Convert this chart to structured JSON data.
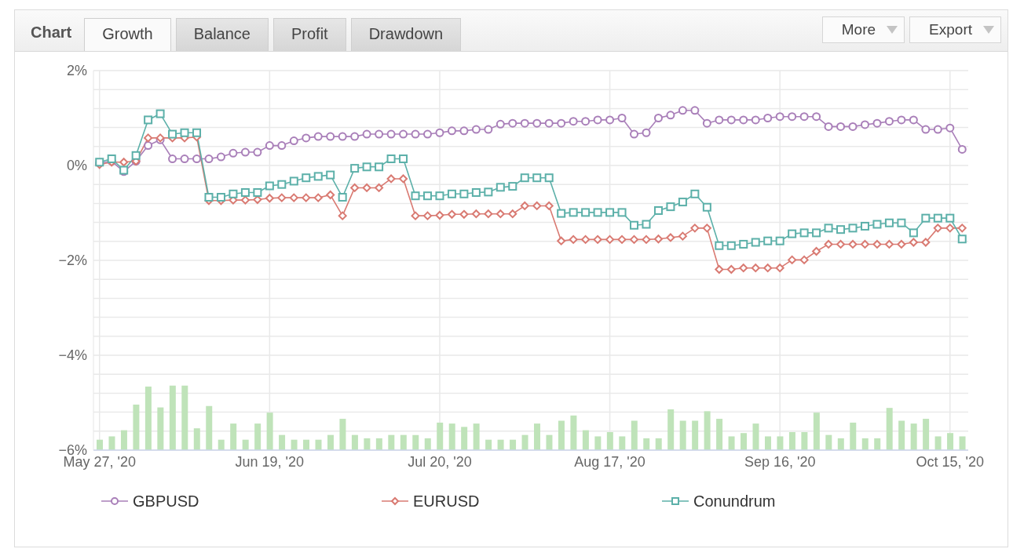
{
  "chart_data": {
    "type": "line",
    "title": "Chart",
    "annotations": [
      "Growth",
      "Balance",
      "Profit",
      "Drawdown",
      "More",
      "Export"
    ],
    "categories": [
      "May 27, '20",
      null,
      null,
      null,
      null,
      null,
      null,
      null,
      null,
      null,
      null,
      null,
      null,
      null,
      "Jun 19, '20",
      null,
      null,
      null,
      null,
      null,
      null,
      null,
      null,
      null,
      null,
      null,
      null,
      null,
      "Jul 20, '20",
      null,
      null,
      null,
      null,
      null,
      null,
      null,
      null,
      null,
      null,
      null,
      null,
      null,
      "Aug 17, '20",
      null,
      null,
      null,
      null,
      null,
      null,
      null,
      null,
      null,
      null,
      null,
      null,
      null,
      "Sep 16, '20",
      null,
      null,
      null,
      null,
      null,
      null,
      null,
      null,
      null,
      null,
      null,
      null,
      null,
      "Oct 15, '20",
      null
    ],
    "ylim": [
      -6,
      2
    ],
    "yticks": [
      {
        "value": 2,
        "label": "2%"
      },
      {
        "value": 1.6,
        "label": null
      },
      {
        "value": 1.2,
        "label": null
      },
      {
        "value": 0.8,
        "label": null
      },
      {
        "value": 0.4,
        "label": null
      },
      {
        "value": 0,
        "label": "0%"
      },
      {
        "value": -0.4,
        "label": null
      },
      {
        "value": -0.8,
        "label": null
      },
      {
        "value": -1.2,
        "label": null
      },
      {
        "value": -1.6,
        "label": null
      },
      {
        "value": -2,
        "label": "−2%"
      },
      {
        "value": -2.4,
        "label": null
      },
      {
        "value": -2.8,
        "label": null
      },
      {
        "value": -3.2,
        "label": null
      },
      {
        "value": -3.6,
        "label": null
      },
      {
        "value": -4,
        "label": "−4%"
      },
      {
        "value": -4.4,
        "label": null
      },
      {
        "value": -4.8,
        "label": null
      },
      {
        "value": -5.2,
        "label": null
      },
      {
        "value": -5.6,
        "label": null
      },
      {
        "value": -6,
        "label": "−6%"
      }
    ],
    "grid": true,
    "legend": "bottom",
    "series": [
      {
        "type": "bar",
        "color": "#bfe3b9",
        "values": [
          0.22,
          0.29,
          0.42,
          0.96,
          1.34,
          0.9,
          1.36,
          1.36,
          0.46,
          0.93,
          0.22,
          0.56,
          0.22,
          0.56,
          0.79,
          0.32,
          0.22,
          0.22,
          0.22,
          0.32,
          0.66,
          0.32,
          0.25,
          0.25,
          0.32,
          0.32,
          0.32,
          0.25,
          0.58,
          0.56,
          0.49,
          0.56,
          0.22,
          0.22,
          0.22,
          0.32,
          0.56,
          0.32,
          0.62,
          0.73,
          0.42,
          0.29,
          0.38,
          0.29,
          0.62,
          0.25,
          0.25,
          0.86,
          0.62,
          0.62,
          0.82,
          0.66,
          0.29,
          0.36,
          0.56,
          0.29,
          0.29,
          0.38,
          0.38,
          0.79,
          0.32,
          0.25,
          0.58,
          0.25,
          0.25,
          0.89,
          0.62,
          0.56,
          0.66,
          0.29,
          0.36,
          0.29
        ],
        "base": [
          -6,
          -6,
          -6,
          -6,
          -6,
          -6,
          -6,
          -6,
          -6,
          -6,
          -6,
          -6,
          -6,
          -6,
          -6,
          -6,
          -6,
          -6,
          -6,
          -6,
          -6,
          -6,
          -6,
          -6,
          -6,
          -6,
          -6,
          -6,
          -6,
          -6,
          -6,
          -6,
          -6,
          -6,
          -6,
          -6,
          -6,
          -6,
          -6,
          -6,
          -6,
          -6,
          -6,
          -6,
          -6,
          -6,
          -6,
          -6,
          -6,
          -6,
          -6,
          -6,
          -6,
          -6,
          -6,
          -6,
          -6,
          -6,
          -6,
          -6,
          -6,
          -6,
          -6,
          -6,
          -6,
          -6,
          -6,
          -6,
          -6,
          -6,
          -6,
          -6
        ]
      },
      {
        "name": "GBPUSD",
        "color": "#a97fb9",
        "marker": "circle",
        "values": [
          0.05,
          0.09,
          -0.13,
          0.09,
          0.42,
          0.54,
          0.14,
          0.14,
          0.14,
          0.14,
          0.18,
          0.26,
          0.28,
          0.28,
          0.42,
          0.42,
          0.52,
          0.58,
          0.61,
          0.61,
          0.61,
          0.61,
          0.66,
          0.66,
          0.66,
          0.66,
          0.66,
          0.66,
          0.69,
          0.73,
          0.73,
          0.76,
          0.76,
          0.87,
          0.89,
          0.89,
          0.89,
          0.89,
          0.89,
          0.93,
          0.93,
          0.96,
          0.96,
          1.0,
          0.66,
          0.69,
          1.0,
          1.06,
          1.16,
          1.16,
          0.89,
          0.96,
          0.96,
          0.96,
          0.96,
          1.0,
          1.03,
          1.03,
          1.03,
          1.03,
          0.82,
          0.82,
          0.82,
          0.86,
          0.89,
          0.93,
          0.96,
          0.96,
          0.76,
          0.76,
          0.79,
          0.34
        ]
      },
      {
        "name": "EURUSD",
        "color": "#d97a72",
        "marker": "diamond",
        "values": [
          0.02,
          0.07,
          0.07,
          0.09,
          0.58,
          0.58,
          0.58,
          0.58,
          0.6,
          -0.74,
          -0.74,
          -0.73,
          -0.73,
          -0.72,
          -0.69,
          -0.68,
          -0.68,
          -0.68,
          -0.68,
          -0.62,
          -1.06,
          -0.47,
          -0.47,
          -0.47,
          -0.28,
          -0.28,
          -1.06,
          -1.06,
          -1.05,
          -1.03,
          -1.03,
          -1.02,
          -1.02,
          -1.02,
          -1.02,
          -0.85,
          -0.85,
          -0.85,
          -1.59,
          -1.56,
          -1.56,
          -1.56,
          -1.56,
          -1.56,
          -1.56,
          -1.56,
          -1.55,
          -1.52,
          -1.49,
          -1.32,
          -1.32,
          -2.19,
          -2.19,
          -2.16,
          -2.16,
          -2.16,
          -2.16,
          -1.99,
          -1.99,
          -1.81,
          -1.66,
          -1.66,
          -1.66,
          -1.66,
          -1.66,
          -1.66,
          -1.66,
          -1.62,
          -1.62,
          -1.32,
          -1.32,
          -1.32
        ]
      },
      {
        "name": "Conundrum",
        "color": "#5cb0a9",
        "marker": "square",
        "values": [
          0.07,
          0.14,
          -0.1,
          0.21,
          0.96,
          1.09,
          0.66,
          0.69,
          0.69,
          -0.67,
          -0.67,
          -0.6,
          -0.57,
          -0.57,
          -0.43,
          -0.4,
          -0.33,
          -0.26,
          -0.23,
          -0.2,
          -0.67,
          -0.06,
          -0.03,
          -0.03,
          0.14,
          0.14,
          -0.64,
          -0.64,
          -0.64,
          -0.6,
          -0.6,
          -0.57,
          -0.56,
          -0.46,
          -0.44,
          -0.26,
          -0.26,
          -0.26,
          -1.01,
          -0.99,
          -0.99,
          -0.99,
          -0.99,
          -0.99,
          -1.26,
          -1.24,
          -0.95,
          -0.87,
          -0.77,
          -0.6,
          -0.88,
          -1.69,
          -1.69,
          -1.66,
          -1.62,
          -1.59,
          -1.59,
          -1.44,
          -1.42,
          -1.42,
          -1.32,
          -1.35,
          -1.32,
          -1.28,
          -1.24,
          -1.21,
          -1.21,
          -1.42,
          -1.11,
          -1.11,
          -1.11,
          -1.55
        ]
      }
    ]
  }
}
